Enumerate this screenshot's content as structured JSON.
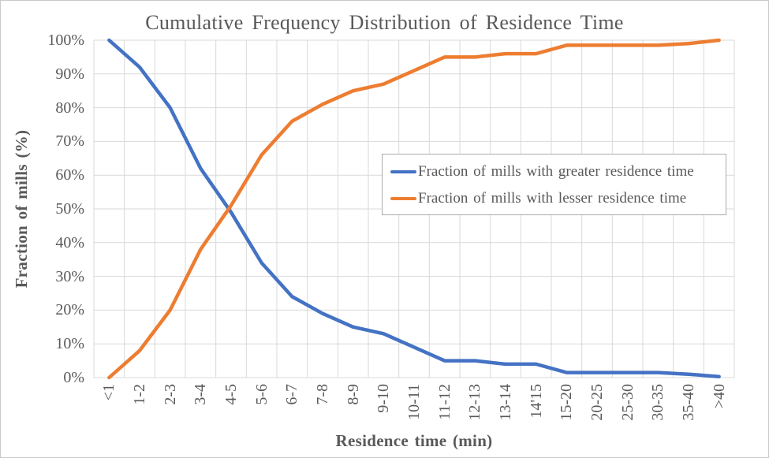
{
  "frame": {
    "background": "#ffffff",
    "border_color": "#c9c9c9"
  },
  "chart_data": {
    "type": "line",
    "title": "Cumulative Frequency Distribution of Residence Time",
    "xlabel": "Residence time (min)",
    "ylabel": "Fraction of mills (%)",
    "categories": [
      "<1",
      "1-2",
      "2-3",
      "3-4",
      "4-5",
      "5-6",
      "6-7",
      "7-8",
      "8-9",
      "9-10",
      "10-11",
      "11-12",
      "12-13",
      "13-14",
      "14'15",
      "15-20",
      "20-25",
      "25-30",
      "30-35",
      "35-40",
      ">40"
    ],
    "y_tick_labels": [
      "0%",
      "10%",
      "20%",
      "30%",
      "40%",
      "50%",
      "60%",
      "70%",
      "80%",
      "90%",
      "100%"
    ],
    "ylim": [
      0,
      100
    ],
    "grid": true,
    "legend_position": "inside-right",
    "series": [
      {
        "name": "Fraction of mills with greater residence time",
        "color": "#4472C4",
        "values": [
          100,
          92,
          80,
          62,
          49,
          34,
          24,
          19,
          15,
          13,
          9,
          5,
          5,
          4,
          4,
          1.5,
          1.5,
          1.5,
          1.5,
          1,
          0.3
        ]
      },
      {
        "name": "Fraction of mills with lesser residence time",
        "color": "#ED7D31",
        "values": [
          0,
          8,
          20,
          38,
          51,
          66,
          76,
          81,
          85,
          87,
          91,
          95,
          95,
          96,
          96,
          98.5,
          98.5,
          98.5,
          98.5,
          99,
          100
        ]
      }
    ],
    "colors": {
      "gridline": "#d9d9d9",
      "text": "#595959"
    }
  }
}
